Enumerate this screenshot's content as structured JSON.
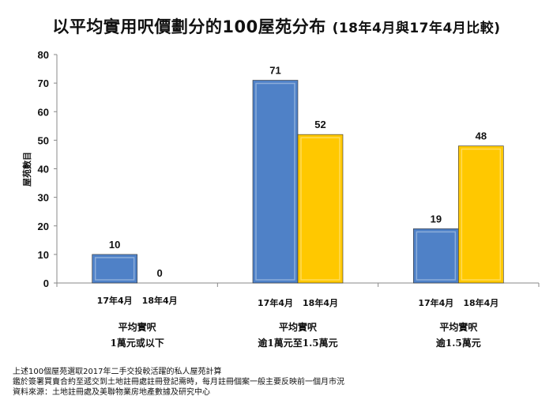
{
  "title": {
    "main": "以平均實用呎價劃分的100屋苑分布",
    "sub": "(18年4月與17年4月比較)"
  },
  "chart_data": {
    "type": "bar",
    "title": "以平均實用呎價劃分的100屋苑分布 (18年4月與17年4月比較)",
    "ylabel": "屋苑數目",
    "xlabel": "",
    "ylim": [
      0,
      80
    ],
    "yticks": [
      0,
      10,
      20,
      30,
      40,
      50,
      60,
      70,
      80
    ],
    "categories": [
      {
        "line1": "平均實呎",
        "line2": "1萬元或以下"
      },
      {
        "line1": "平均實呎",
        "line2": "逾1萬元至1.5萬元"
      },
      {
        "line1": "平均實呎",
        "line2": "逾1.5萬元"
      }
    ],
    "series": [
      {
        "name": "17年4月",
        "color": "#4f81c7",
        "values": [
          10,
          71,
          19
        ]
      },
      {
        "name": "18年4月",
        "color": "#ffc800",
        "values": [
          0,
          52,
          48
        ]
      }
    ],
    "grid": false,
    "legend": "none"
  },
  "footnotes": [
    "上述100個屋苑選取2017年二手交投較活躍的私人屋苑計算",
    "鑑於簽署買賣合約至遞交到土地註冊處註冊登記需時，每月註冊個案一般主要反映前一個月市況",
    "資料來源：土地註冊處及美聯物業房地產數據及研究中心"
  ]
}
